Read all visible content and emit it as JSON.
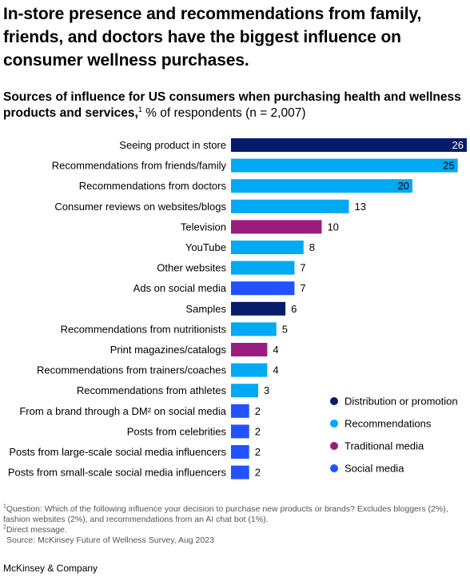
{
  "headline": "In-store presence and recommendations from family, friends, and doctors have the biggest influence on consumer wellness purchases.",
  "subtitle": {
    "bold": "Sources of influence for US consumers when purchasing health and wellness products and services,",
    "sup": "1",
    "rest": " % of respondents (n = 2,007)"
  },
  "chart_data": {
    "type": "bar",
    "orientation": "horizontal",
    "categories": [
      "Seeing product in store",
      "Recommendations from friends/family",
      "Recommendations from doctors",
      "Consumer reviews on websites/blogs",
      "Television",
      "YouTube",
      "Other websites",
      "Ads on social media",
      "Samples",
      "Recommendations from nutritionists",
      "Print magazines/catalogs",
      "Recommendations from trainers/coaches",
      "Recommendations from athletes",
      "From a brand through a DM² on social media",
      "Posts from celebrities",
      "Posts from large-scale social media influencers",
      "Posts from small-scale social media influencers"
    ],
    "values": [
      26,
      25,
      20,
      13,
      10,
      8,
      7,
      7,
      6,
      5,
      4,
      4,
      3,
      2,
      2,
      2,
      2
    ],
    "groups": [
      "Distribution or promotion",
      "Recommendations",
      "Recommendations",
      "Recommendations",
      "Traditional media",
      "Recommendations",
      "Recommendations",
      "Social media",
      "Distribution or promotion",
      "Recommendations",
      "Traditional media",
      "Recommendations",
      "Recommendations",
      "Social media",
      "Social media",
      "Social media",
      "Social media"
    ],
    "legend": [
      {
        "name": "Distribution or promotion",
        "color": "#051c6b"
      },
      {
        "name": "Recommendations",
        "color": "#00a9f4"
      },
      {
        "name": "Traditional media",
        "color": "#9b1c7f"
      },
      {
        "name": "Social media",
        "color": "#2251ff"
      }
    ],
    "legend_position": "bottom-right",
    "xlim": [
      0,
      26
    ],
    "grid": false,
    "xlabel": "",
    "ylabel": ""
  },
  "footnotes": {
    "note1_sup": "1",
    "note1": "Question: Which of the following influence your decision to purchase new products or brands? Excludes bloggers (2%), fashion websites (2%), and recommendations from an AI chat bot (1%).",
    "note2_sup": "2",
    "note2": "Direct message.",
    "source": "Source: McKinsey Future of Wellness Survey, Aug 2023"
  },
  "brand": "McKinsey & Company"
}
